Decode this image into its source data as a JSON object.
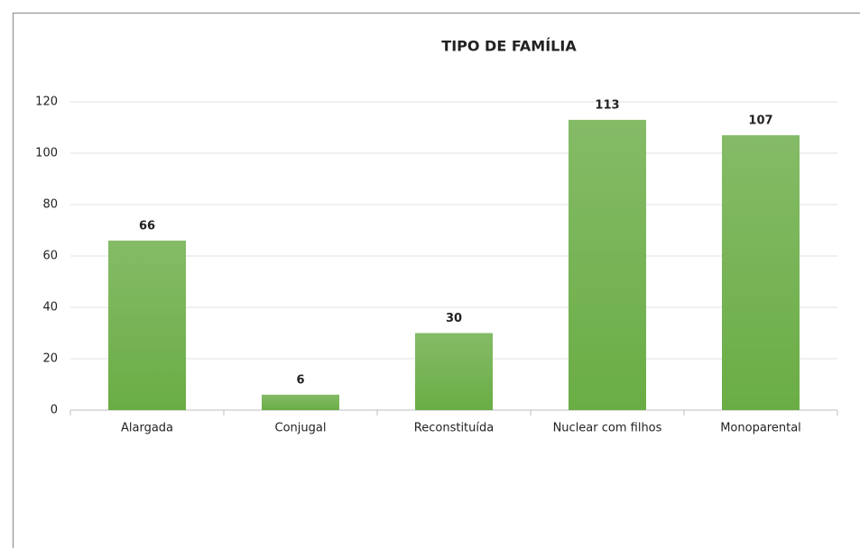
{
  "chart_data": {
    "type": "bar",
    "title": "TIPO DE FAMÍLIA",
    "categories": [
      "Alargada",
      "Conjugal",
      "Reconstituída",
      "Nuclear com filhos",
      "Monoparental"
    ],
    "values": [
      66,
      6,
      30,
      113,
      107
    ],
    "color": "#70ad47",
    "ylim": [
      0,
      120
    ],
    "yticks": [
      0,
      20,
      40,
      60,
      80,
      100,
      120
    ],
    "grid": true
  }
}
